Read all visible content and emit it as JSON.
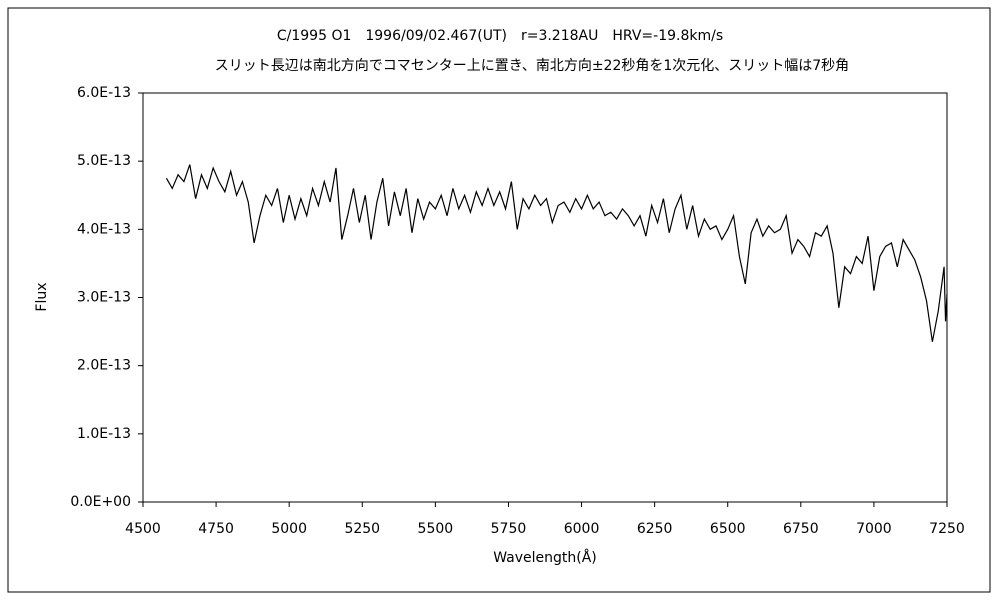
{
  "chart_data": {
    "type": "line",
    "title": "C/1995 O1　1996/09/02.467(UT)　r=3.218AU　HRV=-19.8km/s",
    "subtitle": "スリット長辺は南北方向でコマセンター上に置き、南北方向±22秒角を1次元化、スリット幅は7秒角",
    "x_label": "Wavelength(Å)",
    "y_label": "Flux",
    "color": "#000000",
    "xlim": [
      4500,
      7250
    ],
    "xticks": [
      4500,
      4750,
      5000,
      5250,
      5500,
      5750,
      6000,
      6250,
      6500,
      6750,
      7000,
      7250
    ],
    "ylim": [
      0,
      6e-13
    ],
    "yticks": [
      {
        "value": 0,
        "label": "0.0E+00"
      },
      {
        "value": 1e-13,
        "label": "1.0E-13"
      },
      {
        "value": 2e-13,
        "label": "2.0E-13"
      },
      {
        "value": 3e-13,
        "label": "3.0E-13"
      },
      {
        "value": 4e-13,
        "label": "4.0E-13"
      },
      {
        "value": 5e-13,
        "label": "5.0E-13"
      },
      {
        "value": 6e-13,
        "label": "6.0E-13"
      }
    ],
    "x": [
      4580,
      4600,
      4620,
      4640,
      4660,
      4680,
      4700,
      4720,
      4740,
      4760,
      4780,
      4800,
      4820,
      4840,
      4860,
      4880,
      4900,
      4920,
      4940,
      4960,
      4980,
      5000,
      5020,
      5040,
      5060,
      5080,
      5100,
      5120,
      5140,
      5160,
      5180,
      5200,
      5220,
      5240,
      5260,
      5280,
      5300,
      5320,
      5340,
      5360,
      5380,
      5400,
      5420,
      5440,
      5460,
      5480,
      5500,
      5520,
      5540,
      5560,
      5580,
      5600,
      5620,
      5640,
      5660,
      5680,
      5700,
      5720,
      5740,
      5760,
      5780,
      5800,
      5820,
      5840,
      5860,
      5880,
      5900,
      5920,
      5940,
      5960,
      5980,
      6000,
      6020,
      6040,
      6060,
      6080,
      6100,
      6120,
      6140,
      6160,
      6180,
      6200,
      6220,
      6240,
      6260,
      6280,
      6300,
      6320,
      6340,
      6360,
      6380,
      6400,
      6420,
      6440,
      6460,
      6480,
      6500,
      6520,
      6540,
      6560,
      6580,
      6600,
      6620,
      6640,
      6660,
      6680,
      6700,
      6720,
      6740,
      6760,
      6780,
      6800,
      6820,
      6840,
      6860,
      6880,
      6900,
      6920,
      6940,
      6960,
      6980,
      7000,
      7020,
      7040,
      7060,
      7080,
      7100,
      7120,
      7140,
      7160,
      7180,
      7200,
      7220,
      7240,
      7245,
      7250
    ],
    "values": [
      4.75e-13,
      4.6e-13,
      4.8e-13,
      4.7e-13,
      4.95e-13,
      4.45e-13,
      4.8e-13,
      4.6e-13,
      4.9e-13,
      4.7e-13,
      4.55e-13,
      4.85e-13,
      4.5e-13,
      4.7e-13,
      4.4e-13,
      3.8e-13,
      4.2e-13,
      4.5e-13,
      4.35e-13,
      4.6e-13,
      4.1e-13,
      4.5e-13,
      4.15e-13,
      4.45e-13,
      4.2e-13,
      4.6e-13,
      4.35e-13,
      4.7e-13,
      4.4e-13,
      4.9e-13,
      3.85e-13,
      4.2e-13,
      4.6e-13,
      4.1e-13,
      4.5e-13,
      3.85e-13,
      4.4e-13,
      4.75e-13,
      4.05e-13,
      4.55e-13,
      4.2e-13,
      4.6e-13,
      3.95e-13,
      4.45e-13,
      4.15e-13,
      4.4e-13,
      4.3e-13,
      4.5e-13,
      4.2e-13,
      4.6e-13,
      4.3e-13,
      4.5e-13,
      4.25e-13,
      4.55e-13,
      4.35e-13,
      4.6e-13,
      4.35e-13,
      4.55e-13,
      4.3e-13,
      4.7e-13,
      4e-13,
      4.45e-13,
      4.3e-13,
      4.5e-13,
      4.35e-13,
      4.45e-13,
      4.1e-13,
      4.35e-13,
      4.4e-13,
      4.25e-13,
      4.45e-13,
      4.3e-13,
      4.5e-13,
      4.3e-13,
      4.4e-13,
      4.2e-13,
      4.25e-13,
      4.15e-13,
      4.3e-13,
      4.2e-13,
      4.05e-13,
      4.2e-13,
      3.9e-13,
      4.35e-13,
      4.1e-13,
      4.45e-13,
      3.95e-13,
      4.3e-13,
      4.5e-13,
      4e-13,
      4.35e-13,
      3.9e-13,
      4.15e-13,
      4e-13,
      4.05e-13,
      3.85e-13,
      4e-13,
      4.2e-13,
      3.6e-13,
      3.2e-13,
      3.95e-13,
      4.15e-13,
      3.9e-13,
      4.05e-13,
      3.95e-13,
      4e-13,
      4.2e-13,
      3.65e-13,
      3.85e-13,
      3.75e-13,
      3.6e-13,
      3.95e-13,
      3.9e-13,
      4.05e-13,
      3.65e-13,
      2.85e-13,
      3.45e-13,
      3.35e-13,
      3.6e-13,
      3.5e-13,
      3.9e-13,
      3.1e-13,
      3.6e-13,
      3.75e-13,
      3.8e-13,
      3.45e-13,
      3.85e-13,
      3.7e-13,
      3.55e-13,
      3.3e-13,
      2.95e-13,
      2.35e-13,
      2.8e-13,
      3.45e-13,
      2.65e-13,
      3.05e-13
    ]
  }
}
